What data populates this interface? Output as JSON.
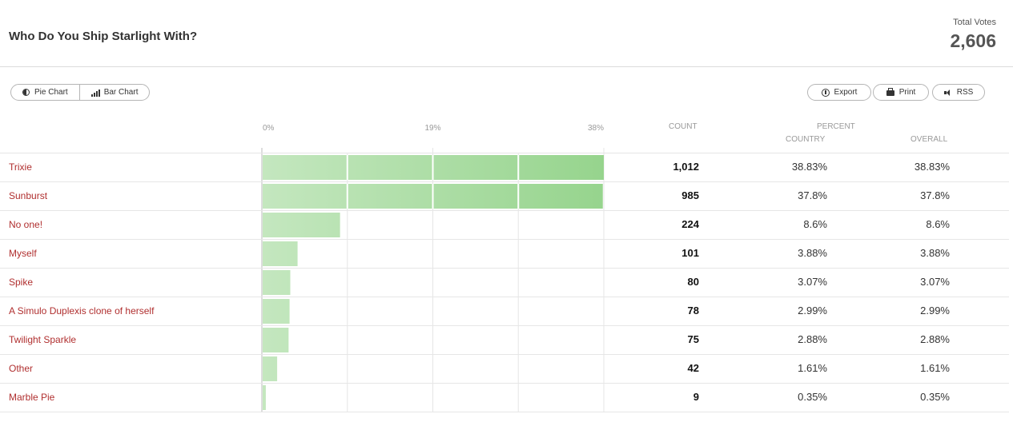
{
  "header": {
    "title": "Who Do You Ship Starlight With?",
    "total_label": "Total Votes",
    "total_value": "2,606"
  },
  "toolbar": {
    "pie_label": "Pie Chart",
    "bar_label": "Bar Chart",
    "export_label": "Export",
    "print_label": "Print",
    "rss_label": "RSS"
  },
  "table": {
    "count_header": "COUNT",
    "percent_header": "PERCENT",
    "country_header": "COUNTRY",
    "overall_header": "OVERALL"
  },
  "colors": {
    "bar_light": "#c4e7bf",
    "bar_dark": "#96d48d",
    "label": "#b02f2f"
  },
  "chart_data": {
    "type": "bar",
    "orientation": "horizontal",
    "xlim": [
      0,
      38
    ],
    "tick_labels": [
      "0%",
      "19%",
      "38%"
    ],
    "categories": [
      "Trixie",
      "Sunburst",
      "No one!",
      "Myself",
      "Spike",
      "A Simulo Duplexis clone of herself",
      "Twilight Sparkle",
      "Other",
      "Marble Pie"
    ],
    "values": [
      38.83,
      37.8,
      8.6,
      3.88,
      3.07,
      2.99,
      2.88,
      1.61,
      0.35
    ],
    "counts": [
      "1,012",
      "985",
      "224",
      "101",
      "80",
      "78",
      "75",
      "42",
      "9"
    ],
    "percent_country": [
      "38.83%",
      "37.8%",
      "8.6%",
      "3.88%",
      "3.07%",
      "2.99%",
      "2.88%",
      "1.61%",
      "0.35%"
    ],
    "percent_overall": [
      "38.83%",
      "37.8%",
      "8.6%",
      "3.88%",
      "3.07%",
      "2.99%",
      "2.88%",
      "1.61%",
      "0.35%"
    ]
  }
}
